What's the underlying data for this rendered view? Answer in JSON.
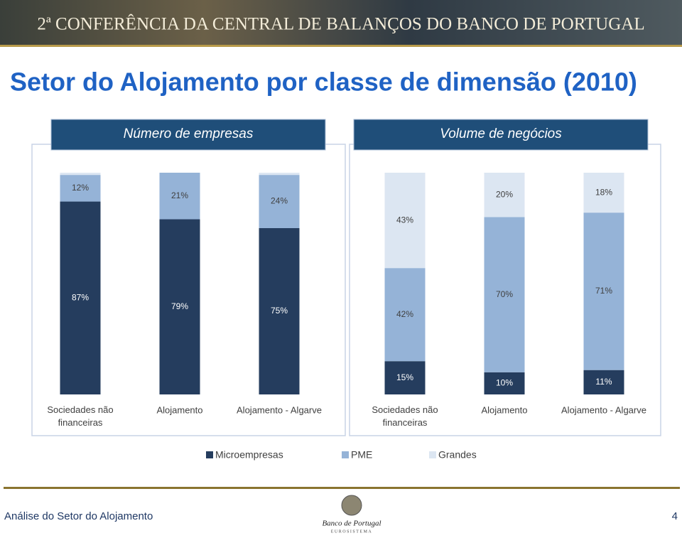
{
  "banner": "2ª CONFERÊNCIA DA CENTRAL DE BALANÇOS DO BANCO DE PORTUGAL",
  "slide_title": "Setor do Alojamento por classe de dimensão (2010)",
  "chart_data": [
    {
      "type": "bar",
      "stacked": true,
      "title": "Número de empresas",
      "categories": [
        "Sociedades não financeiras",
        "Alojamento",
        "Alojamento - Algarve"
      ],
      "ylim": [
        0,
        100
      ],
      "series": [
        {
          "name": "Microempresas",
          "color": "#253d5e",
          "values": [
            87,
            79,
            75
          ],
          "value_labels": [
            "87%",
            "79%",
            "75%"
          ]
        },
        {
          "name": "PME",
          "color": "#95b3d7",
          "values": [
            12,
            21,
            24
          ],
          "value_labels": [
            "12%",
            "21%",
            "24%"
          ]
        },
        {
          "name": "Grandes",
          "color": "#dce6f2",
          "values": [
            1,
            0,
            1
          ],
          "value_labels": [
            null,
            null,
            null
          ]
        }
      ]
    },
    {
      "type": "bar",
      "stacked": true,
      "title": "Volume de negócios",
      "categories": [
        "Sociedades não financeiras",
        "Alojamento",
        "Alojamento - Algarve"
      ],
      "ylim": [
        0,
        100
      ],
      "series": [
        {
          "color": "#253d5e",
          "values": [
            15,
            10,
            11
          ],
          "value_labels": [
            "15%",
            "10%",
            "11%"
          ]
        },
        {
          "color": "#95b3d7",
          "values": [
            42,
            70,
            71
          ],
          "value_labels": [
            "42%",
            "70%",
            "71%"
          ]
        },
        {
          "color": "#dce6f2",
          "values": [
            43,
            20,
            18
          ],
          "value_labels": [
            "43%",
            "20%",
            "18%"
          ]
        }
      ]
    }
  ],
  "footer": "Análise do Setor do Alojamento",
  "page_number": "4",
  "logo": {
    "name": "Banco de Portugal",
    "subtitle": "EUROSISTEMA"
  }
}
